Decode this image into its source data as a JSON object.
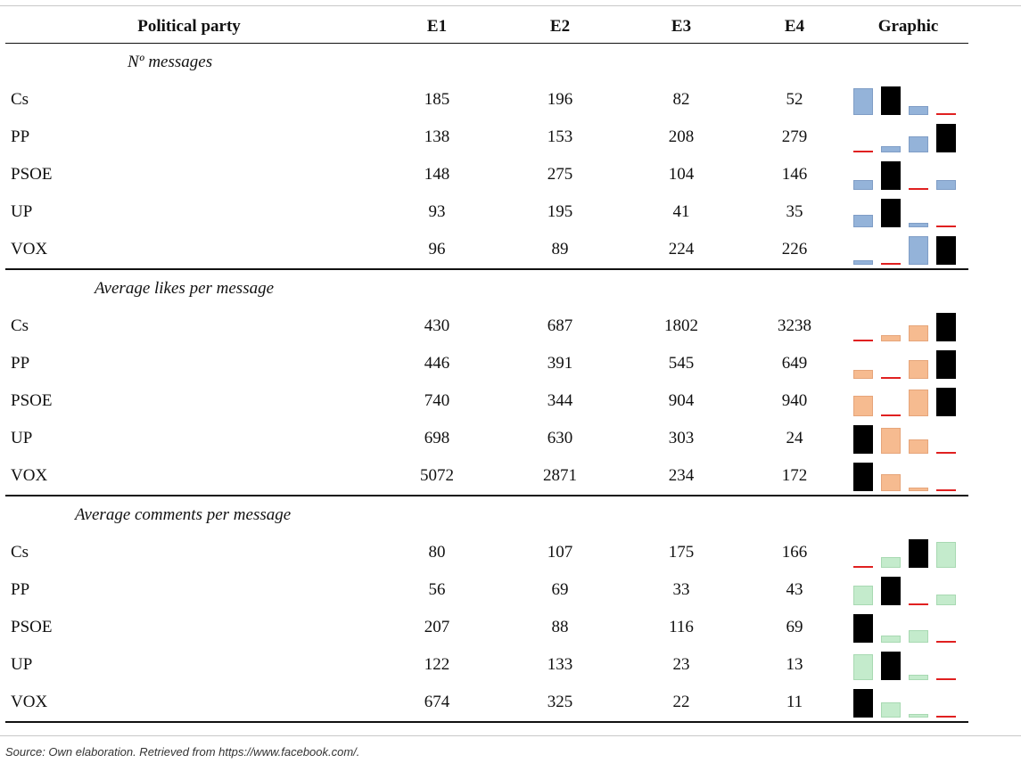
{
  "table": {
    "headers": {
      "party": "Political party",
      "e1": "E1",
      "e2": "E2",
      "e3": "E3",
      "e4": "E4",
      "graphic": "Graphic"
    },
    "sections": [
      {
        "title": "Nº messages",
        "color": "#94b3d9",
        "rows": [
          {
            "party": "Cs",
            "values": [
              185,
              196,
              82,
              52
            ]
          },
          {
            "party": "PP",
            "values": [
              138,
              153,
              208,
              279
            ]
          },
          {
            "party": "PSOE",
            "values": [
              148,
              275,
              104,
              146
            ]
          },
          {
            "party": "UP",
            "values": [
              93,
              195,
              41,
              35
            ]
          },
          {
            "party": "VOX",
            "values": [
              96,
              89,
              224,
              226
            ]
          }
        ]
      },
      {
        "title": "Average likes per message",
        "color": "#f6bb90",
        "rows": [
          {
            "party": "Cs",
            "values": [
              430,
              687,
              1802,
              3238
            ]
          },
          {
            "party": "PP",
            "values": [
              446,
              391,
              545,
              649
            ]
          },
          {
            "party": "PSOE",
            "values": [
              740,
              344,
              904,
              940
            ]
          },
          {
            "party": "UP",
            "values": [
              698,
              630,
              303,
              24
            ]
          },
          {
            "party": "VOX",
            "values": [
              5072,
              2871,
              234,
              172
            ]
          }
        ]
      },
      {
        "title": "Average comments per message",
        "color": "#c4ebcc",
        "rows": [
          {
            "party": "Cs",
            "values": [
              80,
              107,
              175,
              166
            ]
          },
          {
            "party": "PP",
            "values": [
              56,
              69,
              33,
              43
            ]
          },
          {
            "party": "PSOE",
            "values": [
              207,
              88,
              116,
              69
            ]
          },
          {
            "party": "UP",
            "values": [
              122,
              133,
              23,
              13
            ]
          },
          {
            "party": "VOX",
            "values": [
              674,
              325,
              22,
              11
            ]
          }
        ]
      }
    ]
  },
  "source": "Source: Own elaboration. Retrieved from https://www.facebook.com/."
}
